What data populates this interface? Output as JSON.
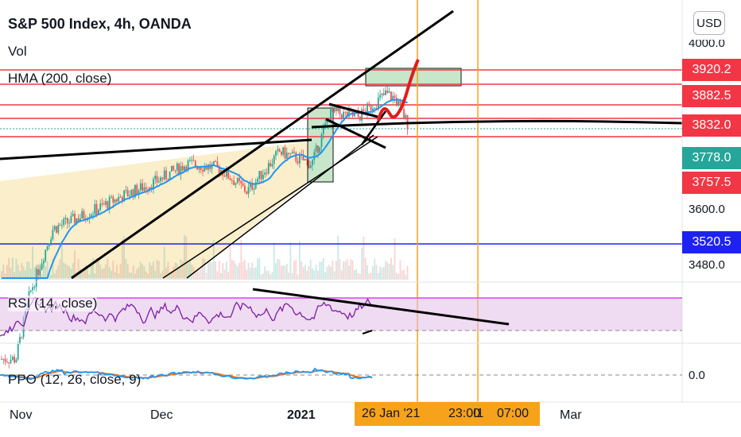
{
  "header": {
    "title": "S&P 500 Index, 4h, OANDA",
    "indicators": [
      "Vol",
      "HMA (200, close)"
    ],
    "rsi_label": "RSI (14, close)",
    "ppo_label": "PPO (12, 26, close, 9)"
  },
  "currency_button": "USD",
  "price_axis": {
    "ticks": [
      "4000.0",
      "3600.0",
      "3480.0"
    ],
    "tags": [
      {
        "label": "3920.2",
        "color": "#f23645"
      },
      {
        "label": "3882.5",
        "color": "#f23645"
      },
      {
        "label": "3832.0",
        "color": "#f23645"
      },
      {
        "label": "3778.0",
        "color": "#26a69a"
      },
      {
        "label": "3757.5",
        "color": "#f23645"
      },
      {
        "label": "3520.5",
        "color": "#1e22f0"
      }
    ]
  },
  "ppo_axis": {
    "tick": "0.0"
  },
  "time_axis": {
    "labels": [
      "Nov",
      "Dec",
      "2021",
      "Mar"
    ],
    "highlight_1": "26 Jan '21",
    "highlight_2": "23:00",
    "highlight_3": "!1",
    "highlight_4": "07:00"
  },
  "colors": {
    "up": "#26a69a",
    "down": "#ef5350",
    "hma": "#2196f3",
    "rsi_line": "#7b1fa2",
    "rsi_band": "#e1bee7",
    "rsi_band_line": "#e040fb",
    "wedge_fill": "#faeecb",
    "zone_fill": "#c8e6c9",
    "red_line": "#f23645",
    "blue_line": "#1e22f0",
    "vertical_line": "#f7a21b",
    "ppo_line": "#2196f3",
    "ppo_signal": "#ff6d00",
    "projection": "#e31b1b"
  },
  "chart_data": {
    "type": "candlestick",
    "symbol": "S&P 500 Index",
    "interval": "4h",
    "source": "OANDA",
    "price_levels": [
      3920.2,
      3882.5,
      3832.0,
      3778.0,
      3757.5,
      3520.5
    ],
    "y_ticks": [
      4000.0,
      3600.0,
      3480.0
    ],
    "x_labels": [
      "Nov",
      "Dec",
      "2021",
      "Mar"
    ],
    "close_path": [
      {
        "date": "2020-11-01",
        "close": 3280
      },
      {
        "date": "2020-11-04",
        "close": 3420
      },
      {
        "date": "2020-11-09",
        "close": 3560
      },
      {
        "date": "2020-11-16",
        "close": 3590
      },
      {
        "date": "2020-11-24",
        "close": 3630
      },
      {
        "date": "2020-12-01",
        "close": 3660
      },
      {
        "date": "2020-12-08",
        "close": 3700
      },
      {
        "date": "2020-12-15",
        "close": 3690
      },
      {
        "date": "2020-12-21",
        "close": 3640
      },
      {
        "date": "2020-12-28",
        "close": 3725
      },
      {
        "date": "2021-01-04",
        "close": 3700
      },
      {
        "date": "2021-01-08",
        "close": 3810
      },
      {
        "date": "2021-01-14",
        "close": 3800
      },
      {
        "date": "2021-01-20",
        "close": 3850
      },
      {
        "date": "2021-01-22",
        "close": 3840
      },
      {
        "date": "2021-01-25",
        "close": 3780
      }
    ]
  }
}
